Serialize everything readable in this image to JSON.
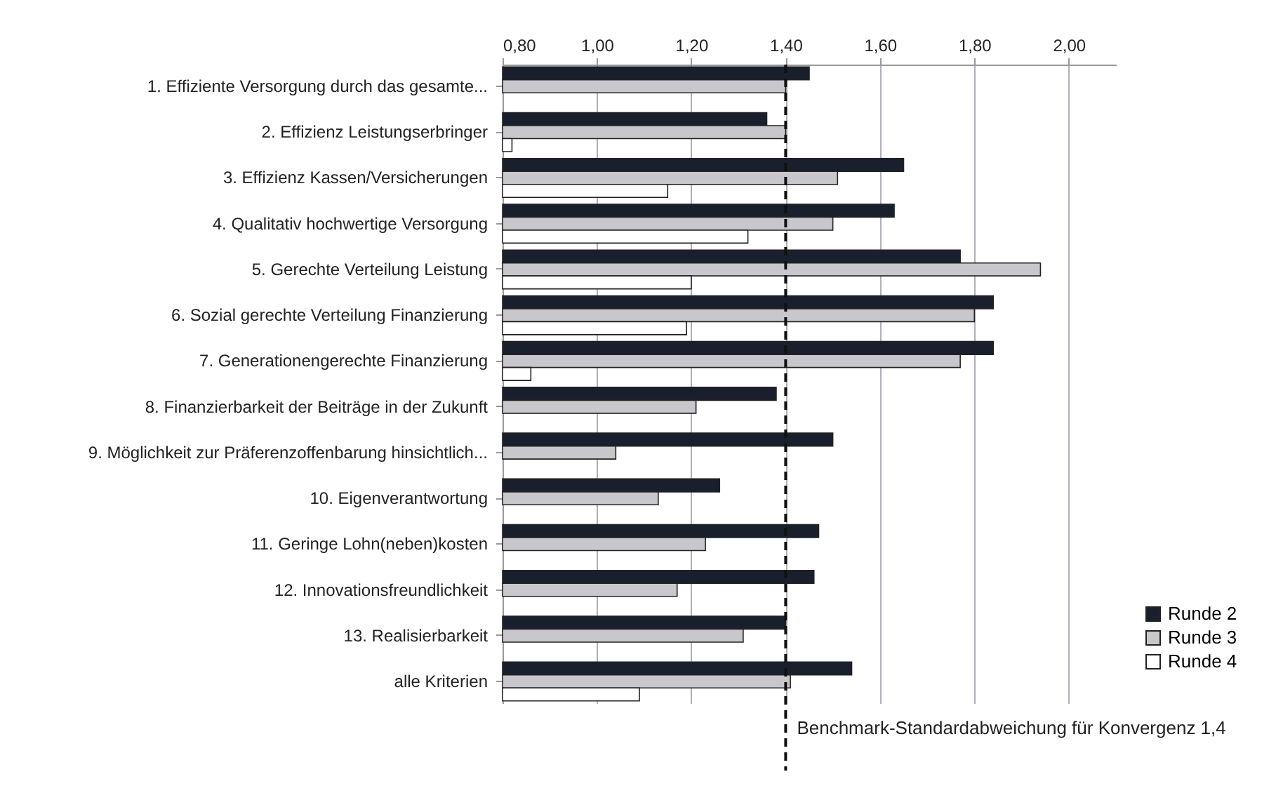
{
  "chart_data": {
    "type": "bar",
    "orientation": "horizontal",
    "categories": [
      "1. Effiziente Versorgung durch das gesamte...",
      "2. Effizienz Leistungserbringer",
      "3. Effizienz Kassen/Versicherungen",
      "4. Qualitativ hochwertige Versorgung",
      "5. Gerechte Verteilung Leistung",
      "6. Sozial gerechte Verteilung Finanzierung",
      "7. Generationengerechte Finanzierung",
      "8. Finanzierbarkeit der Beiträge in der Zukunft",
      "9. Möglichkeit zur Präferenzoffenbarung hinsichtlich...",
      "10. Eigenverantwortung",
      "11. Geringe Lohn(neben)kosten",
      "12. Innovationsfreundlichkeit",
      "13. Realisierbarkeit",
      "alle Kriterien"
    ],
    "series": [
      {
        "name": "Runde 2",
        "color": "#1a1f2e",
        "values": [
          1.45,
          1.36,
          1.65,
          1.63,
          1.77,
          1.84,
          1.84,
          1.38,
          1.5,
          1.26,
          1.47,
          1.46,
          1.4,
          1.54
        ]
      },
      {
        "name": "Runde 3",
        "color": "#c8c8cc",
        "values": [
          1.4,
          1.4,
          1.51,
          1.5,
          1.94,
          1.8,
          1.77,
          1.21,
          1.04,
          1.13,
          1.23,
          1.17,
          1.31,
          1.41
        ]
      },
      {
        "name": "Runde 4",
        "color": "#ffffff",
        "values": [
          null,
          0.82,
          1.15,
          1.32,
          1.2,
          1.19,
          0.86,
          null,
          null,
          null,
          null,
          null,
          null,
          1.09
        ]
      }
    ],
    "xlim": [
      0.8,
      2.1
    ],
    "xticks": [
      {
        "value": 0.8,
        "label": "0,80"
      },
      {
        "value": 1.0,
        "label": "1,00"
      },
      {
        "value": 1.2,
        "label": "1,20"
      },
      {
        "value": 1.4,
        "label": "1,40"
      },
      {
        "value": 1.6,
        "label": "1,60"
      },
      {
        "value": 1.8,
        "label": "1,80"
      },
      {
        "value": 2.0,
        "label": "2,00"
      }
    ],
    "grid": "x",
    "legend": "right",
    "ref_lines": [
      {
        "axis": "x",
        "value": 1.4,
        "label": "Benchmark-Standardabweichung für Konvergenz 1,4",
        "line_style": "dashed"
      }
    ]
  }
}
